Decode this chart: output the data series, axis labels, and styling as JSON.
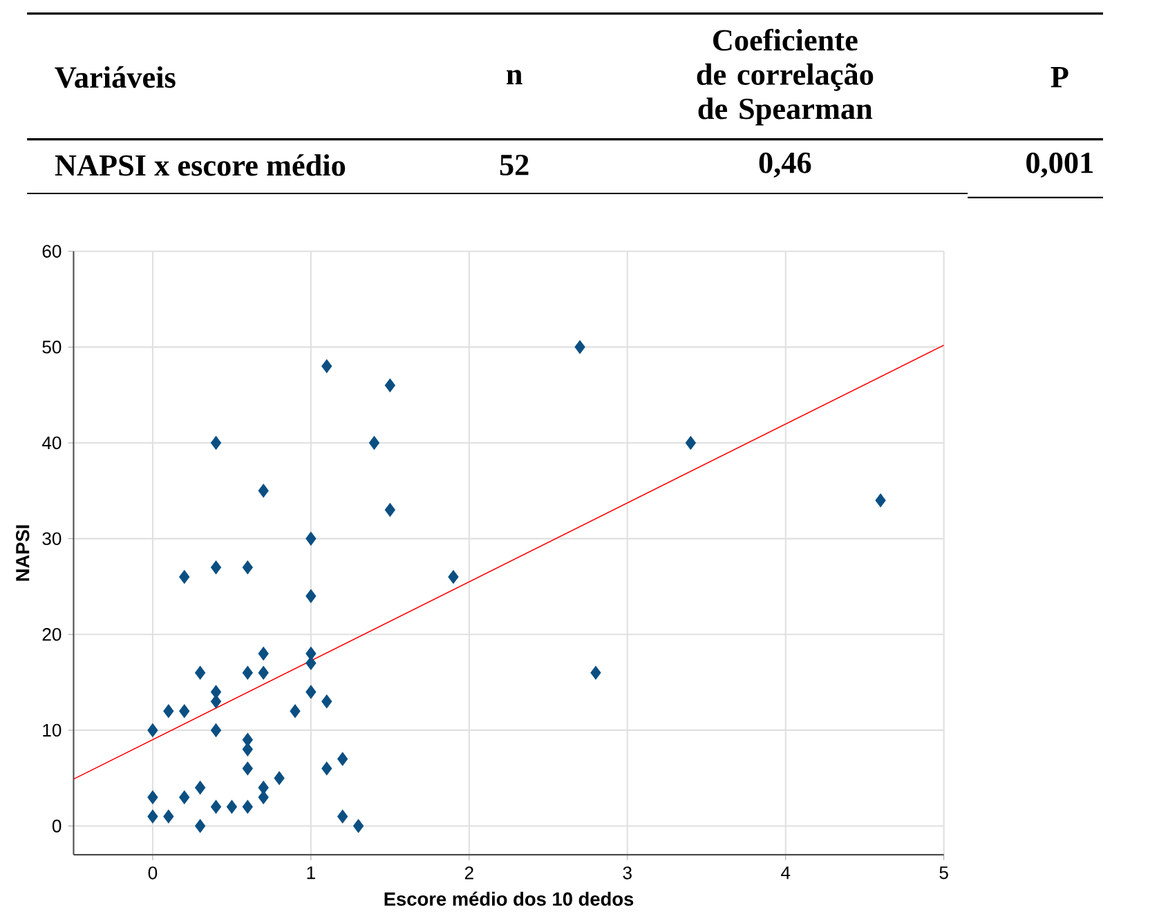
{
  "chart_data": {
    "type": "scatter",
    "xlabel": "Escore médio dos 10 dedos",
    "ylabel": "NAPSI",
    "annotations": [
      "Variáveis",
      "n",
      "Coeficiente de correlação de Spearman",
      "P",
      "NAPSI x escore médio",
      "52",
      "0,46",
      "0,001"
    ],
    "xlim": [
      -0.5,
      5
    ],
    "ylim": [
      -3,
      60
    ],
    "xticks": [
      0,
      1,
      2,
      3,
      4,
      5
    ],
    "yticks": [
      0,
      10,
      20,
      30,
      40,
      50,
      60
    ],
    "grid": true,
    "marker": "diamond",
    "series": [
      {
        "color": "#0b4f82",
        "x": [
          0,
          0,
          0,
          0.1,
          0.1,
          0.2,
          0.2,
          0.2,
          0.3,
          0.3,
          0.3,
          0.4,
          0.4,
          0.4,
          0.4,
          0.4,
          0.4,
          0.5,
          0.6,
          0.6,
          0.6,
          0.6,
          0.6,
          0.6,
          0.7,
          0.7,
          0.7,
          0.7,
          0.7,
          0.8,
          0.9,
          1.0,
          1.0,
          1.0,
          1.0,
          1.0,
          1.1,
          1.1,
          1.1,
          1.2,
          1.2,
          1.3,
          1.4,
          1.5,
          1.5,
          1.9,
          2.7,
          2.8,
          3.4,
          4.6
        ],
        "values": [
          10,
          3,
          1,
          12,
          1,
          12,
          3,
          26,
          16,
          4,
          0,
          40,
          27,
          14,
          13,
          10,
          2,
          2,
          27,
          16,
          9,
          8,
          6,
          2,
          35,
          18,
          16,
          4,
          3,
          5,
          12,
          30,
          24,
          18,
          17,
          14,
          48,
          13,
          6,
          7,
          1,
          0,
          40,
          46,
          33,
          26,
          50,
          16,
          40,
          34
        ]
      },
      {
        "type": "line",
        "color": "#ff0000",
        "marker": "none",
        "x": [
          -0.5,
          5
        ],
        "values": [
          4.9,
          50.2
        ]
      }
    ]
  }
}
